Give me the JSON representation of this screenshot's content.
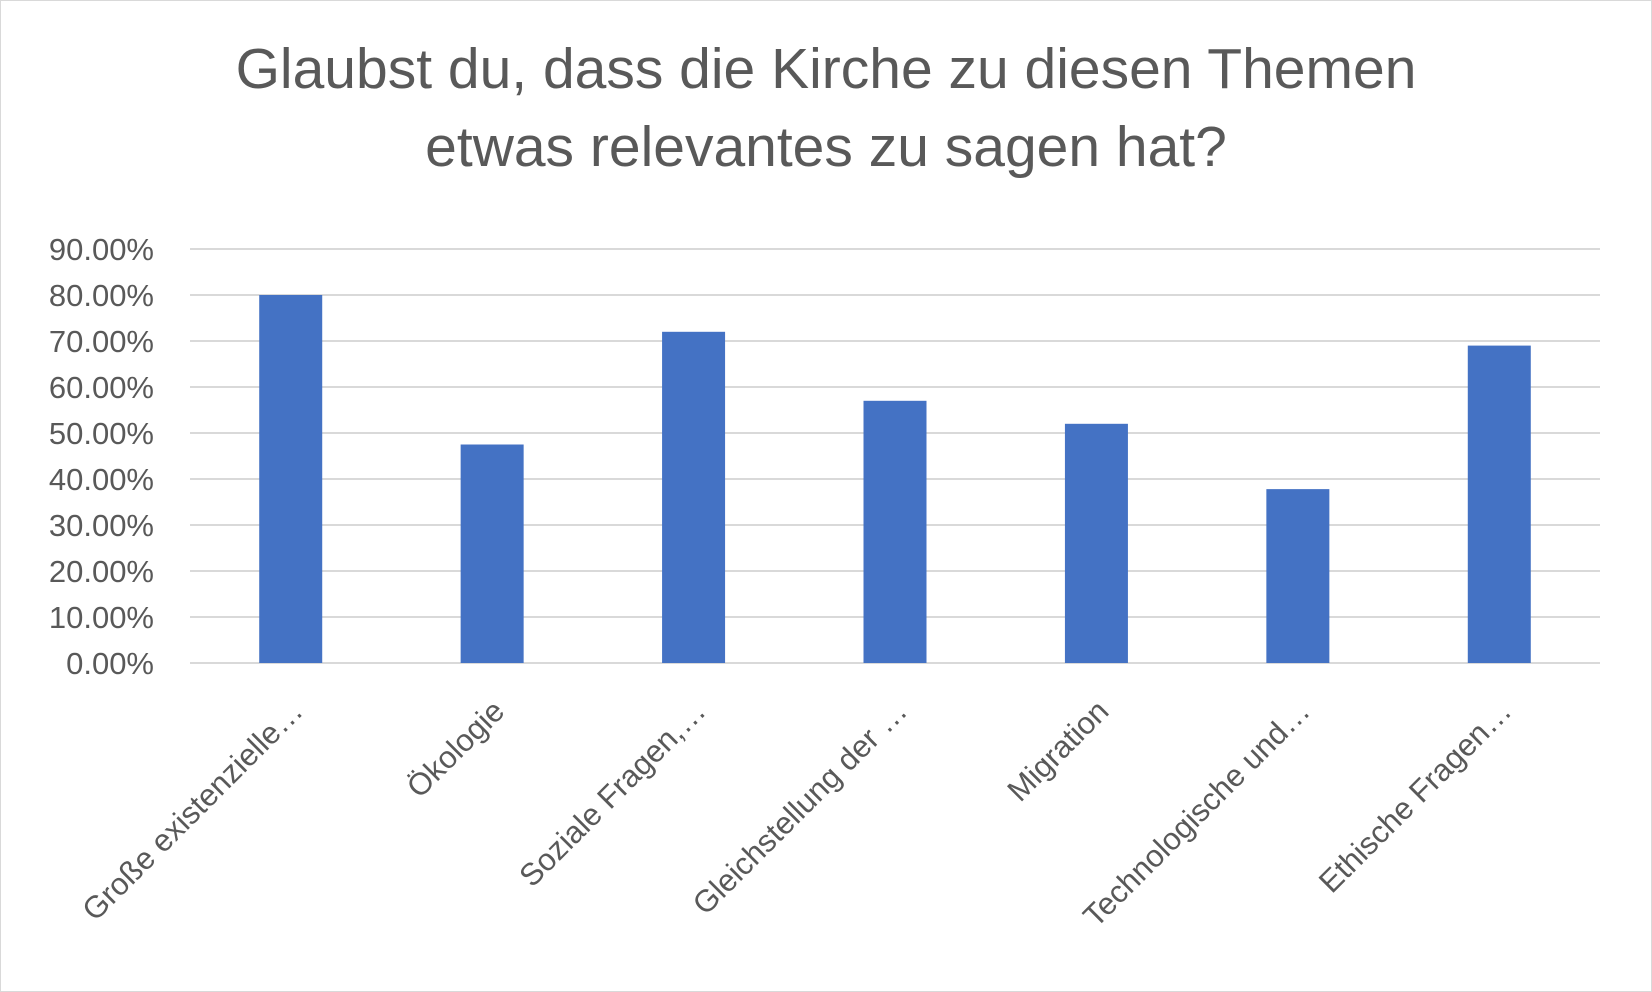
{
  "chart_data": {
    "type": "bar",
    "title": "Glaubst du, dass die Kirche zu diesen Themen etwas relevantes zu sagen hat?",
    "title_lines": [
      "Glaubst du, dass die Kirche zu diesen Themen",
      "etwas relevantes zu sagen hat?"
    ],
    "categories": [
      "Große existenzielle…",
      "Ökologie",
      "Soziale Fragen,…",
      "Gleichstellung der …",
      "Migration",
      "Technologische und…",
      "Ethische Fragen…"
    ],
    "values": [
      0.8,
      0.475,
      0.72,
      0.57,
      0.52,
      0.378,
      0.69
    ],
    "ylim": [
      0,
      0.9
    ],
    "yticks": [
      0,
      0.1,
      0.2,
      0.3,
      0.4,
      0.5,
      0.6,
      0.7,
      0.8,
      0.9
    ],
    "ytick_labels": [
      "0.00%",
      "10.00%",
      "20.00%",
      "30.00%",
      "40.00%",
      "50.00%",
      "60.00%",
      "70.00%",
      "80.00%",
      "90.00%"
    ],
    "xlabel": "",
    "ylabel": "",
    "grid": true,
    "legend": "none",
    "bar_color": "#4472c4",
    "grid_color": "#d9d9d9"
  }
}
